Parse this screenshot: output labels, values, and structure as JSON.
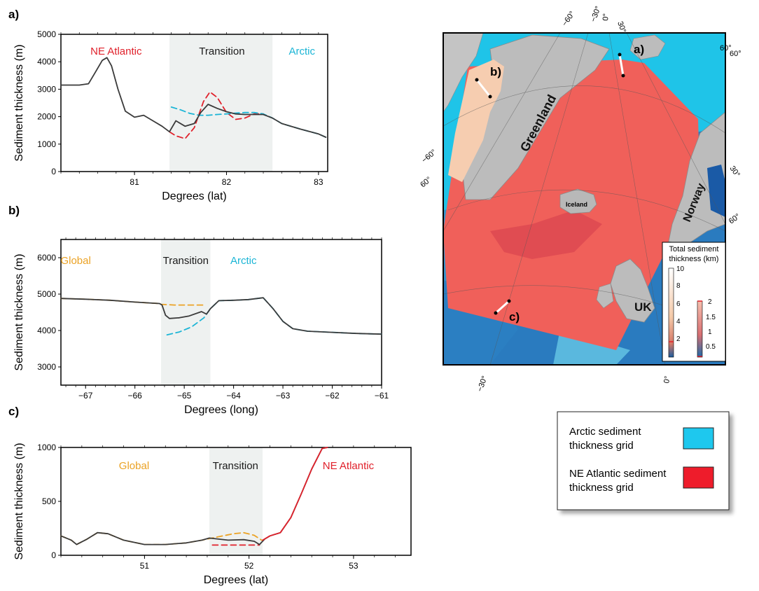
{
  "chart_data": [
    {
      "id": "a",
      "type": "line",
      "panel_label": "a)",
      "xlabel": "Degrees (lat)",
      "ylabel": "Sediment thickness (m)",
      "xlim": [
        80.2,
        83.1
      ],
      "ylim": [
        0,
        5000
      ],
      "xticks": [
        81,
        82,
        83
      ],
      "xtick_labels": [
        "81",
        "82",
        "83"
      ],
      "yticks": [
        0,
        1000,
        2000,
        3000,
        4000,
        5000
      ],
      "ytick_labels": [
        "0",
        "1000",
        "2000",
        "3000",
        "4000",
        "5000"
      ],
      "transition_band": [
        81.38,
        82.5
      ],
      "regions": [
        {
          "text": "NE Atlantic",
          "color": "#e0212b",
          "x": 80.8
        },
        {
          "text": "Transition",
          "color": "#1a1a1a",
          "x": 81.95
        },
        {
          "text": "Arctic",
          "color": "#1bb5d6",
          "x": 82.82
        }
      ],
      "series": [
        {
          "role": "grid-a",
          "color": "#e0212b",
          "dash": "8,5",
          "x": [
            81.38,
            81.45,
            81.55,
            81.65,
            81.75,
            81.82,
            81.9,
            82.0,
            82.1,
            82.2,
            82.3,
            82.4
          ],
          "y": [
            1450,
            1300,
            1200,
            1600,
            2550,
            2900,
            2700,
            2150,
            1900,
            1950,
            2100,
            2100
          ]
        },
        {
          "role": "grid-b",
          "color": "#1bb5d6",
          "dash": "8,5",
          "x": [
            81.4,
            81.5,
            81.6,
            81.7,
            81.8,
            81.9,
            82.0,
            82.1,
            82.2,
            82.3,
            82.4,
            82.5,
            82.6,
            82.8,
            83.0,
            83.08
          ],
          "y": [
            2350,
            2250,
            2120,
            2050,
            2050,
            2080,
            2100,
            2130,
            2150,
            2150,
            2100,
            1950,
            1750,
            1550,
            1370,
            1250
          ]
        },
        {
          "role": "merged",
          "color": "#3a3a3a",
          "dash": "",
          "x": [
            80.2,
            80.4,
            80.5,
            80.58,
            80.65,
            80.7,
            80.75,
            80.82,
            80.9,
            81.0,
            81.1,
            81.2,
            81.3,
            81.38,
            81.45,
            81.55,
            81.65,
            81.72,
            81.8,
            81.9,
            82.0,
            82.1,
            82.2,
            82.3,
            82.4,
            82.5,
            82.6,
            82.8,
            83.0,
            83.08
          ],
          "y": [
            3150,
            3150,
            3200,
            3650,
            4050,
            4150,
            3850,
            3000,
            2200,
            1980,
            2050,
            1850,
            1650,
            1450,
            1850,
            1650,
            1750,
            2150,
            2450,
            2300,
            2180,
            2100,
            2080,
            2080,
            2080,
            1950,
            1750,
            1550,
            1370,
            1250
          ]
        }
      ]
    },
    {
      "id": "b",
      "type": "line",
      "panel_label": "b)",
      "xlabel": "Degrees (long)",
      "ylabel": "Sediment thickness (m)",
      "xlim": [
        -67.5,
        -61.0
      ],
      "ylim": [
        2500,
        6500
      ],
      "xticks": [
        -67,
        -66,
        -65,
        -64,
        -63,
        -62,
        -61
      ],
      "xtick_labels": [
        "−67",
        "−66",
        "−65",
        "−64",
        "−63",
        "−62",
        "−61"
      ],
      "yticks": [
        3000,
        4000,
        5000,
        6000
      ],
      "ytick_labels": [
        "3000",
        "4000",
        "5000",
        "6000"
      ],
      "transition_band": [
        -65.47,
        -64.47
      ],
      "regions": [
        {
          "text": "Global",
          "color": "#eba224",
          "x": -67.2
        },
        {
          "text": "Transition",
          "color": "#1a1a1a",
          "x": -64.97
        },
        {
          "text": "Arctic",
          "color": "#1bb5d6",
          "x": -63.8
        }
      ],
      "series": [
        {
          "role": "grid-a",
          "color": "#eba224",
          "dash": "8,5",
          "x": [
            -67.5,
            -67.0,
            -66.5,
            -66.0,
            -65.5,
            -65.47,
            -65.2,
            -64.9,
            -64.6
          ],
          "y": [
            4880,
            4860,
            4830,
            4780,
            4740,
            4720,
            4700,
            4700,
            4700
          ]
        },
        {
          "role": "grid-b",
          "color": "#1bb5d6",
          "dash": "8,5",
          "x": [
            -65.35,
            -65.1,
            -64.85,
            -64.6,
            -64.47,
            -64.3,
            -64.0,
            -63.7,
            -63.4,
            -63.2,
            -63.0,
            -62.8,
            -62.5,
            -62.0,
            -61.5,
            -61.0
          ],
          "y": [
            3880,
            3960,
            4100,
            4350,
            4600,
            4820,
            4830,
            4850,
            4900,
            4600,
            4250,
            4050,
            3980,
            3950,
            3920,
            3900
          ]
        },
        {
          "role": "merged",
          "color": "#3a3a3a",
          "dash": "",
          "x": [
            -67.5,
            -67.0,
            -66.5,
            -66.0,
            -65.5,
            -65.45,
            -65.38,
            -65.3,
            -65.1,
            -64.9,
            -64.65,
            -64.55,
            -64.47,
            -64.3,
            -64.0,
            -63.7,
            -63.4,
            -63.2,
            -63.0,
            -62.8,
            -62.5,
            -62.0,
            -61.5,
            -61.0
          ],
          "y": [
            4880,
            4860,
            4830,
            4780,
            4740,
            4700,
            4420,
            4330,
            4350,
            4400,
            4520,
            4450,
            4600,
            4820,
            4830,
            4850,
            4900,
            4600,
            4250,
            4050,
            3980,
            3950,
            3920,
            3900
          ]
        }
      ]
    },
    {
      "id": "c",
      "type": "line",
      "panel_label": "c)",
      "xlabel": "Degrees (lat)",
      "ylabel": "Sediment thickness (m)",
      "xlim": [
        50.2,
        53.55
      ],
      "ylim": [
        0,
        1000
      ],
      "xticks": [
        51,
        52,
        53
      ],
      "xtick_labels": [
        "51",
        "52",
        "53"
      ],
      "yticks": [
        0,
        500,
        1000
      ],
      "ytick_labels": [
        "0",
        "500",
        "1000"
      ],
      "transition_band": [
        51.62,
        52.13
      ],
      "regions": [
        {
          "text": "Global",
          "color": "#eba224",
          "x": 50.9
        },
        {
          "text": "Transition",
          "color": "#1a1a1a",
          "x": 51.87
        },
        {
          "text": "NE Atlantic",
          "color": "#e0212b",
          "x": 52.95
        }
      ],
      "series": [
        {
          "role": "grid-a",
          "color": "#eba224",
          "dash": "8,5",
          "x": [
            50.2,
            50.3,
            50.35,
            50.45,
            50.55,
            50.65,
            50.8,
            51.0,
            51.2,
            51.4,
            51.55,
            51.7,
            51.85,
            51.95,
            52.05,
            52.12
          ],
          "y": [
            180,
            140,
            100,
            150,
            210,
            200,
            140,
            100,
            100,
            115,
            140,
            170,
            200,
            210,
            185,
            140
          ]
        },
        {
          "role": "grid-b",
          "color": "#e0212b",
          "dash": "8,5",
          "x": [
            51.65,
            51.8,
            51.95,
            52.1
          ],
          "y": [
            95,
            95,
            95,
            95
          ]
        },
        {
          "role": "merged",
          "color": "#3a3a3a",
          "dash": "",
          "x": [
            50.2,
            50.3,
            50.35,
            50.45,
            50.55,
            50.65,
            50.8,
            51.0,
            51.2,
            51.4,
            51.55,
            51.62,
            51.8,
            51.95,
            52.05,
            52.1,
            52.15,
            52.2,
            52.3,
            52.4,
            52.5,
            52.6,
            52.7,
            52.75
          ],
          "y": [
            180,
            140,
            100,
            150,
            210,
            200,
            140,
            100,
            100,
            115,
            140,
            160,
            140,
            145,
            130,
            100,
            150,
            180,
            210,
            350,
            570,
            800,
            990,
            1000
          ]
        },
        {
          "role": "ne-atlantic",
          "color": "#e0212b",
          "dash": "",
          "x": [
            52.13,
            52.2,
            52.3,
            52.4,
            52.5,
            52.6,
            52.7,
            52.75
          ],
          "y": [
            140,
            180,
            210,
            350,
            570,
            800,
            990,
            1000
          ]
        }
      ]
    }
  ],
  "map": {
    "panel_labels": [
      "a)",
      "b)",
      "c)"
    ],
    "places": [
      "Greenland",
      "Iceland",
      "Norway",
      "UK"
    ],
    "graticule_labels": [
      "−60°",
      "−30°",
      "0°",
      "30°",
      "60°",
      "−60°",
      "60°",
      "30°",
      "60°",
      "60°",
      "−30°",
      "0°"
    ],
    "colorbar": {
      "title_line1": "Total sediment",
      "title_line2": "thickness (km)",
      "ticks_main": [
        "10",
        "8",
        "6",
        "4",
        "2"
      ],
      "ticks_small": [
        "2",
        "1.5",
        "1",
        "0.5"
      ]
    },
    "colors": {
      "arctic": "#1fc4e8",
      "ne_atlantic": "#f0605a",
      "ocean_deep": "#2a7bbf",
      "land": "#b8b8b8"
    }
  },
  "legend": {
    "items": [
      {
        "line1": "Arctic sediment",
        "line2": "thickness grid",
        "color": "#1ec8ee"
      },
      {
        "line1": "NE Atlantic sediment",
        "line2": "thickness grid",
        "color": "#ee1c2b"
      }
    ]
  }
}
